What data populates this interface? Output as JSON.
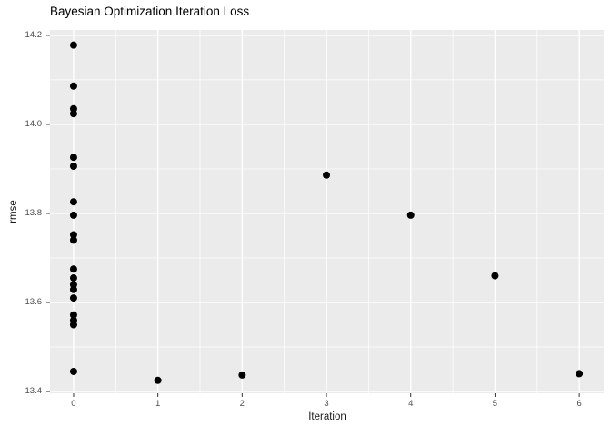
{
  "chart_data": {
    "type": "scatter",
    "title": "Bayesian Optimization Iteration Loss",
    "xlabel": "Iteration",
    "ylabel": "rmse",
    "xlim": [
      -0.28,
      6.29
    ],
    "ylim": [
      13.396,
      14.212
    ],
    "x_ticks": [
      0,
      1,
      2,
      3,
      4,
      5,
      6
    ],
    "x_tick_labels": [
      "0",
      "1",
      "2",
      "3",
      "4",
      "5",
      "6"
    ],
    "y_ticks": [
      13.4,
      13.6,
      13.8,
      14.0,
      14.2
    ],
    "y_tick_labels": [
      "13.4",
      "13.6",
      "13.8",
      "14.0",
      "14.2"
    ],
    "x_minor_gridlines": [
      0.5,
      1.5,
      2.5,
      3.5,
      4.5,
      5.5
    ],
    "y_minor_gridlines": [
      13.5,
      13.7,
      13.9,
      14.1
    ],
    "grid": true,
    "legend": false,
    "points": [
      {
        "x": 0,
        "y": 14.178
      },
      {
        "x": 0,
        "y": 14.086
      },
      {
        "x": 0,
        "y": 14.035
      },
      {
        "x": 0,
        "y": 14.024
      },
      {
        "x": 0,
        "y": 13.926
      },
      {
        "x": 0,
        "y": 13.906
      },
      {
        "x": 0,
        "y": 13.826
      },
      {
        "x": 0,
        "y": 13.796
      },
      {
        "x": 0,
        "y": 13.752
      },
      {
        "x": 0,
        "y": 13.74
      },
      {
        "x": 0,
        "y": 13.675
      },
      {
        "x": 0,
        "y": 13.655
      },
      {
        "x": 0,
        "y": 13.64
      },
      {
        "x": 0,
        "y": 13.629
      },
      {
        "x": 0,
        "y": 13.61
      },
      {
        "x": 0,
        "y": 13.572
      },
      {
        "x": 0,
        "y": 13.56
      },
      {
        "x": 0,
        "y": 13.55
      },
      {
        "x": 0,
        "y": 13.445
      },
      {
        "x": 1,
        "y": 13.425
      },
      {
        "x": 2,
        "y": 13.437
      },
      {
        "x": 3,
        "y": 13.886
      },
      {
        "x": 4,
        "y": 13.796
      },
      {
        "x": 5,
        "y": 13.66
      },
      {
        "x": 6,
        "y": 13.44
      }
    ],
    "colors": {
      "panel_background": "#EBEBEB",
      "gridline": "#FFFFFF",
      "point": "#000000",
      "tick_mark": "#333333",
      "axis_text": "#4D4D4D",
      "title_text": "#000000"
    }
  }
}
